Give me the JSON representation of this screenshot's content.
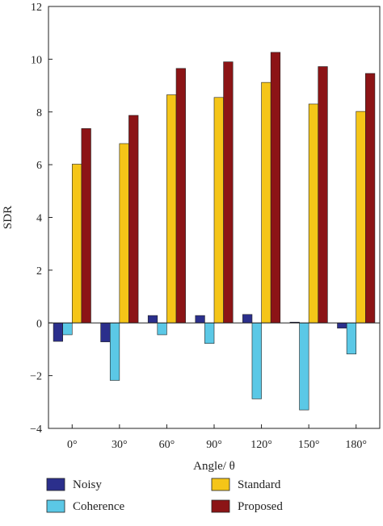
{
  "chart_data": {
    "type": "bar",
    "title": "",
    "xlabel": "Angle/ θ",
    "ylabel": "SDR",
    "ylim": [
      -4,
      12
    ],
    "yticks": [
      -4,
      -2,
      0,
      2,
      4,
      6,
      8,
      10,
      12
    ],
    "ytick_labels": [
      "−4",
      "−2",
      "0",
      "2",
      "4",
      "6",
      "8",
      "10",
      "12"
    ],
    "grid": false,
    "legend_position": "bottom",
    "categories": [
      "0°",
      "30°",
      "60°",
      "90°",
      "120°",
      "150°",
      "180°"
    ],
    "series": [
      {
        "name": "Noisy",
        "color": "#2b2f8c",
        "values": [
          -0.7,
          -0.72,
          0.28,
          0.28,
          0.32,
          0.03,
          -0.2
        ]
      },
      {
        "name": "Coherence",
        "color": "#5bc8e6",
        "values": [
          -0.45,
          -2.18,
          -0.45,
          -0.78,
          -2.88,
          -3.3,
          -1.18
        ]
      },
      {
        "name": "Standard",
        "color": "#f5c518",
        "values": [
          6.02,
          6.8,
          8.65,
          8.55,
          9.12,
          8.3,
          8.02
        ]
      },
      {
        "name": "Proposed",
        "color": "#8c1416",
        "values": [
          7.37,
          7.87,
          9.65,
          9.9,
          10.26,
          9.72,
          9.46
        ]
      }
    ]
  }
}
